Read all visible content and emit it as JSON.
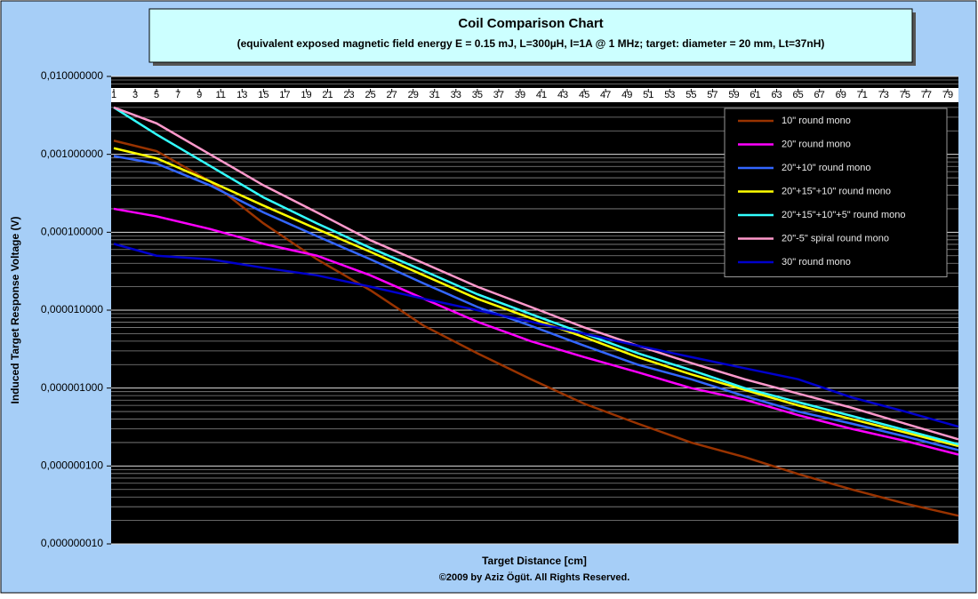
{
  "chart_data": {
    "type": "line",
    "title": "Coil Comparison Chart",
    "subtitle": "(equivalent exposed magnetic field energy E = 0.15 mJ, L=300µH, I=1A @ 1 MHz; target: diameter = 20 mm, Lt=37nH)",
    "x_label": "Target Distance [cm]",
    "y_label": "Induced Target Response Voltage (V)",
    "footer": "©2009 by Aziz Ögüt. All Rights Reserved.",
    "y_scale": "log",
    "grid": true,
    "legend": "upper right",
    "x": [
      1,
      5,
      10,
      15,
      20,
      25,
      30,
      35,
      40,
      45,
      50,
      55,
      60,
      65,
      70,
      75,
      80
    ],
    "xlim": [
      1,
      80
    ],
    "xticks": [
      1,
      3,
      5,
      7,
      9,
      11,
      13,
      15,
      17,
      19,
      21,
      23,
      25,
      27,
      29,
      31,
      33,
      35,
      37,
      39,
      41,
      43,
      45,
      47,
      49,
      51,
      53,
      55,
      57,
      59,
      61,
      63,
      65,
      67,
      69,
      71,
      73,
      75,
      77,
      79
    ],
    "ylim": [
      1e-08,
      0.01
    ],
    "yticks": [
      {
        "value": 1e-08,
        "label": "0,000000010"
      },
      {
        "value": 1e-07,
        "label": "0,000000100"
      },
      {
        "value": 1e-06,
        "label": "0,000001000"
      },
      {
        "value": 1e-05,
        "label": "0,000010000"
      },
      {
        "value": 0.0001,
        "label": "0,000100000"
      },
      {
        "value": 0.001,
        "label": "0,001000000"
      },
      {
        "value": 0.01,
        "label": "0,010000000"
      }
    ],
    "series": [
      {
        "name": "10\" round mono",
        "color": "#993300",
        "values": [
          0.0015,
          0.0011,
          0.00045,
          0.00013,
          4.5e-05,
          1.8e-05,
          6.3e-06,
          2.8e-06,
          1.3e-06,
          6.3e-07,
          3.5e-07,
          2e-07,
          1.3e-07,
          7.9e-08,
          5e-08,
          3.3e-08,
          2.3e-08
        ]
      },
      {
        "name": "20\" round mono",
        "color": "#ff00ff",
        "values": [
          0.0002,
          0.00016,
          0.00011,
          7.1e-05,
          5e-05,
          2.8e-05,
          1.4e-05,
          7.1e-06,
          4e-06,
          2.5e-06,
          1.6e-06,
          1e-06,
          7.1e-07,
          4.5e-07,
          3e-07,
          2.1e-07,
          1.4e-07
        ]
      },
      {
        "name": "20\"+10\" round mono",
        "color": "#3366ff",
        "values": [
          0.00095,
          0.00076,
          0.0004,
          0.00018,
          8.9e-05,
          4.5e-05,
          2.2e-05,
          1.1e-05,
          6.3e-06,
          3.5e-06,
          2e-06,
          1.3e-06,
          7.9e-07,
          5e-07,
          3.5e-07,
          2.4e-07,
          1.6e-07
        ]
      },
      {
        "name": "20\"+15\"+10\" round mono",
        "color": "#ffff00",
        "values": [
          0.0012,
          0.00089,
          0.00045,
          0.00022,
          0.00011,
          5.6e-05,
          2.8e-05,
          1.4e-05,
          7.9e-06,
          4.5e-06,
          2.5e-06,
          1.5e-06,
          9.5e-07,
          6e-07,
          4e-07,
          2.7e-07,
          1.8e-07
        ]
      },
      {
        "name": "20\"+15\"+10\"+5\" round mono",
        "color": "#33ffff",
        "values": [
          0.004,
          0.0018,
          0.00071,
          0.00028,
          0.00013,
          6.3e-05,
          3.2e-05,
          1.6e-05,
          8.9e-06,
          5e-06,
          2.8e-06,
          1.7e-06,
          1e-06,
          6.6e-07,
          4.4e-07,
          2.9e-07,
          1.9e-07
        ]
      },
      {
        "name": "20\"-5\" spiral round mono",
        "color": "#ff99cc",
        "values": [
          0.004,
          0.0025,
          0.001,
          0.0004,
          0.00018,
          7.9e-05,
          4e-05,
          2e-05,
          1.1e-05,
          6e-06,
          3.5e-06,
          2.1e-06,
          1.3e-06,
          8.5e-07,
          5.6e-07,
          3.5e-07,
          2.2e-07
        ]
      },
      {
        "name": "30\" round mono",
        "color": "#0000cc",
        "values": [
          7.1e-05,
          5e-05,
          4.5e-05,
          3.5e-05,
          2.8e-05,
          2e-05,
          1.4e-05,
          1e-05,
          7.1e-06,
          5e-06,
          3.5e-06,
          2.5e-06,
          1.8e-06,
          1.3e-06,
          7.6e-07,
          5e-07,
          3.2e-07
        ]
      }
    ]
  }
}
